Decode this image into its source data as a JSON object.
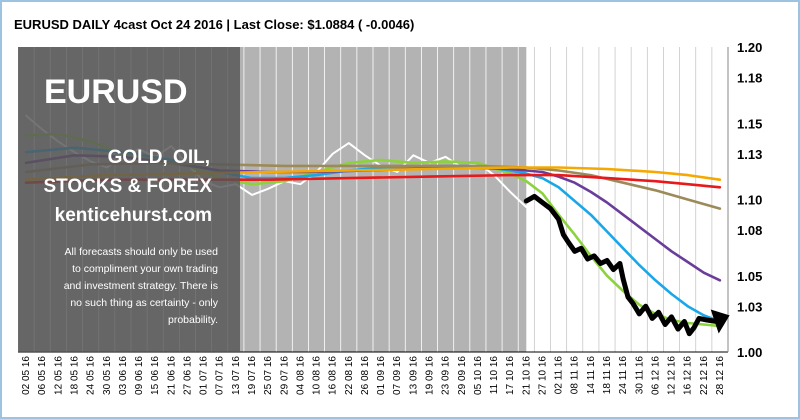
{
  "colors": {
    "history_band": "#b3b3b3",
    "overlay_panel": "#555555",
    "series_white": "#ffffff",
    "series_green": "#8cd23c",
    "series_cyan": "#1aa7e8",
    "series_purple": "#6a3d9a",
    "series_olive": "#9c8a5a",
    "series_orange": "#f5a800",
    "series_red": "#e8191a",
    "forecast_black": "#000000"
  },
  "overlay": {
    "title": "EURUSD",
    "line1": "GOLD, OIL,",
    "line2": "STOCKS & FOREX",
    "url": "kenticehurst.com",
    "disclaimer": [
      "All forecasts should only be used",
      "to compliment your own trading",
      "and investment strategy. There is",
      "no such thing as certainty - only",
      "probability."
    ]
  },
  "chart_data": {
    "type": "line",
    "title": "EURUSD  DAILY  4cast  Oct 24 2016 | Last Close: $1.0884 ( -0.0046)",
    "xlabel": "",
    "ylabel": "",
    "ylim": [
      1.0,
      1.2
    ],
    "y_ticks": [
      "1.20",
      "1.18",
      "1.15",
      "1.13",
      "1.10",
      "1.08",
      "1.05",
      "1.03",
      "1.00"
    ],
    "x_ticks": [
      "02 05 16",
      "06 05 16",
      "12 05 16",
      "18 05 16",
      "24 05 16",
      "30 05 16",
      "03 06 16",
      "09 06 16",
      "15 06 16",
      "21 06 16",
      "27 06 16",
      "01 07 16",
      "07 07 16",
      "13 07 16",
      "19 07 16",
      "25 07 16",
      "29 07 16",
      "04 08 16",
      "10 08 16",
      "16 08 16",
      "22 08 16",
      "26 08 16",
      "01 09 16",
      "07 09 16",
      "13 09 16",
      "19 09 16",
      "23 09 16",
      "29 09 16",
      "05 10 16",
      "11 10 16",
      "17 10 16",
      "21 10 16",
      "27 10 16",
      "02 11 16",
      "08 11 16",
      "14 11 16",
      "18 11 16",
      "24 11 16",
      "30 11 16",
      "06 12 16",
      "12 12 16",
      "16 12 16",
      "22 12 16",
      "28 12 16"
    ],
    "grid": true,
    "history_end_index": 31,
    "series": [
      {
        "color_key": "series_white",
        "points": [
          [
            0,
            1.155
          ],
          [
            1,
            1.146
          ],
          [
            2,
            1.138
          ],
          [
            3,
            1.131
          ],
          [
            4,
            1.125
          ],
          [
            5,
            1.121
          ],
          [
            6,
            1.128
          ],
          [
            7,
            1.133
          ],
          [
            8,
            1.128
          ],
          [
            9,
            1.135
          ],
          [
            10,
            1.123
          ],
          [
            11,
            1.112
          ],
          [
            12,
            1.108
          ],
          [
            13,
            1.11
          ],
          [
            14,
            1.103
          ],
          [
            15,
            1.107
          ],
          [
            16,
            1.112
          ],
          [
            17,
            1.11
          ],
          [
            18,
            1.118
          ],
          [
            19,
            1.13
          ],
          [
            20,
            1.137
          ],
          [
            21,
            1.129
          ],
          [
            22,
            1.122
          ],
          [
            23,
            1.118
          ],
          [
            24,
            1.129
          ],
          [
            25,
            1.124
          ],
          [
            26,
            1.128
          ],
          [
            27,
            1.121
          ],
          [
            28,
            1.124
          ],
          [
            29,
            1.116
          ],
          [
            30,
            1.105
          ],
          [
            31,
            1.095
          ]
        ]
      },
      {
        "color_key": "series_green",
        "points": [
          [
            0,
            1.142
          ],
          [
            2,
            1.143
          ],
          [
            4,
            1.138
          ],
          [
            6,
            1.13
          ],
          [
            8,
            1.126
          ],
          [
            10,
            1.122
          ],
          [
            12,
            1.114
          ],
          [
            14,
            1.11
          ],
          [
            16,
            1.112
          ],
          [
            18,
            1.118
          ],
          [
            20,
            1.124
          ],
          [
            22,
            1.126
          ],
          [
            24,
            1.124
          ],
          [
            26,
            1.125
          ],
          [
            28,
            1.124
          ],
          [
            30,
            1.117
          ],
          [
            31,
            1.112
          ],
          [
            32,
            1.104
          ],
          [
            33,
            1.09
          ],
          [
            34,
            1.077
          ],
          [
            35,
            1.063
          ],
          [
            36,
            1.05
          ],
          [
            37,
            1.04
          ],
          [
            38,
            1.031
          ],
          [
            39,
            1.025
          ],
          [
            40,
            1.021
          ],
          [
            41,
            1.019
          ],
          [
            42,
            1.018
          ],
          [
            43,
            1.017
          ]
        ]
      },
      {
        "color_key": "series_cyan",
        "points": [
          [
            0,
            1.131
          ],
          [
            3,
            1.134
          ],
          [
            6,
            1.131
          ],
          [
            9,
            1.126
          ],
          [
            12,
            1.118
          ],
          [
            14,
            1.114
          ],
          [
            16,
            1.114
          ],
          [
            18,
            1.116
          ],
          [
            20,
            1.119
          ],
          [
            22,
            1.121
          ],
          [
            24,
            1.121
          ],
          [
            26,
            1.122
          ],
          [
            28,
            1.122
          ],
          [
            30,
            1.119
          ],
          [
            31,
            1.117
          ],
          [
            32,
            1.114
          ],
          [
            33,
            1.108
          ],
          [
            34,
            1.099
          ],
          [
            35,
            1.09
          ],
          [
            36,
            1.079
          ],
          [
            37,
            1.068
          ],
          [
            38,
            1.057
          ],
          [
            39,
            1.047
          ],
          [
            40,
            1.038
          ],
          [
            41,
            1.03
          ],
          [
            42,
            1.024
          ],
          [
            43,
            1.02
          ]
        ]
      },
      {
        "color_key": "series_purple",
        "points": [
          [
            0,
            1.124
          ],
          [
            3,
            1.129
          ],
          [
            6,
            1.128
          ],
          [
            9,
            1.124
          ],
          [
            12,
            1.119
          ],
          [
            15,
            1.118
          ],
          [
            18,
            1.118
          ],
          [
            21,
            1.119
          ],
          [
            24,
            1.12
          ],
          [
            27,
            1.121
          ],
          [
            30,
            1.12
          ],
          [
            32,
            1.118
          ],
          [
            33,
            1.115
          ],
          [
            34,
            1.111
          ],
          [
            35,
            1.105
          ],
          [
            36,
            1.098
          ],
          [
            37,
            1.09
          ],
          [
            38,
            1.082
          ],
          [
            39,
            1.074
          ],
          [
            40,
            1.066
          ],
          [
            41,
            1.059
          ],
          [
            42,
            1.052
          ],
          [
            43,
            1.047
          ]
        ]
      },
      {
        "color_key": "series_olive",
        "points": [
          [
            0,
            1.118
          ],
          [
            4,
            1.123
          ],
          [
            8,
            1.124
          ],
          [
            12,
            1.123
          ],
          [
            16,
            1.122
          ],
          [
            20,
            1.122
          ],
          [
            24,
            1.122
          ],
          [
            28,
            1.122
          ],
          [
            31,
            1.121
          ],
          [
            33,
            1.119
          ],
          [
            35,
            1.116
          ],
          [
            37,
            1.111
          ],
          [
            39,
            1.106
          ],
          [
            41,
            1.1
          ],
          [
            43,
            1.094
          ]
        ]
      },
      {
        "color_key": "series_orange",
        "points": [
          [
            0,
            1.113
          ],
          [
            5,
            1.116
          ],
          [
            10,
            1.117
          ],
          [
            15,
            1.118
          ],
          [
            20,
            1.119
          ],
          [
            25,
            1.12
          ],
          [
            30,
            1.121
          ],
          [
            33,
            1.121
          ],
          [
            36,
            1.12
          ],
          [
            39,
            1.118
          ],
          [
            41,
            1.116
          ],
          [
            43,
            1.113
          ]
        ]
      },
      {
        "color_key": "series_red",
        "points": [
          [
            0,
            1.111
          ],
          [
            5,
            1.113
          ],
          [
            10,
            1.113
          ],
          [
            15,
            1.113
          ],
          [
            20,
            1.114
          ],
          [
            25,
            1.115
          ],
          [
            30,
            1.116
          ],
          [
            33,
            1.116
          ],
          [
            36,
            1.114
          ],
          [
            39,
            1.112
          ],
          [
            41,
            1.11
          ],
          [
            43,
            1.108
          ]
        ]
      },
      {
        "color_key": "forecast_black",
        "points": [
          [
            31,
            1.099
          ],
          [
            31.5,
            1.102
          ],
          [
            32,
            1.098
          ],
          [
            32.5,
            1.094
          ],
          [
            33,
            1.087
          ],
          [
            33.3,
            1.077
          ],
          [
            33.6,
            1.072
          ],
          [
            34,
            1.066
          ],
          [
            34.4,
            1.068
          ],
          [
            34.8,
            1.061
          ],
          [
            35.2,
            1.063
          ],
          [
            35.6,
            1.058
          ],
          [
            36,
            1.06
          ],
          [
            36.4,
            1.054
          ],
          [
            36.8,
            1.058
          ],
          [
            37,
            1.048
          ],
          [
            37.3,
            1.036
          ],
          [
            37.6,
            1.032
          ],
          [
            38,
            1.025
          ],
          [
            38.4,
            1.03
          ],
          [
            38.8,
            1.022
          ],
          [
            39.2,
            1.026
          ],
          [
            39.6,
            1.018
          ],
          [
            40,
            1.023
          ],
          [
            40.4,
            1.015
          ],
          [
            40.8,
            1.02
          ],
          [
            41.1,
            1.012
          ],
          [
            41.4,
            1.016
          ],
          [
            41.7,
            1.022
          ],
          [
            42.2,
            1.021
          ],
          [
            42.8,
            1.02
          ]
        ]
      }
    ]
  }
}
